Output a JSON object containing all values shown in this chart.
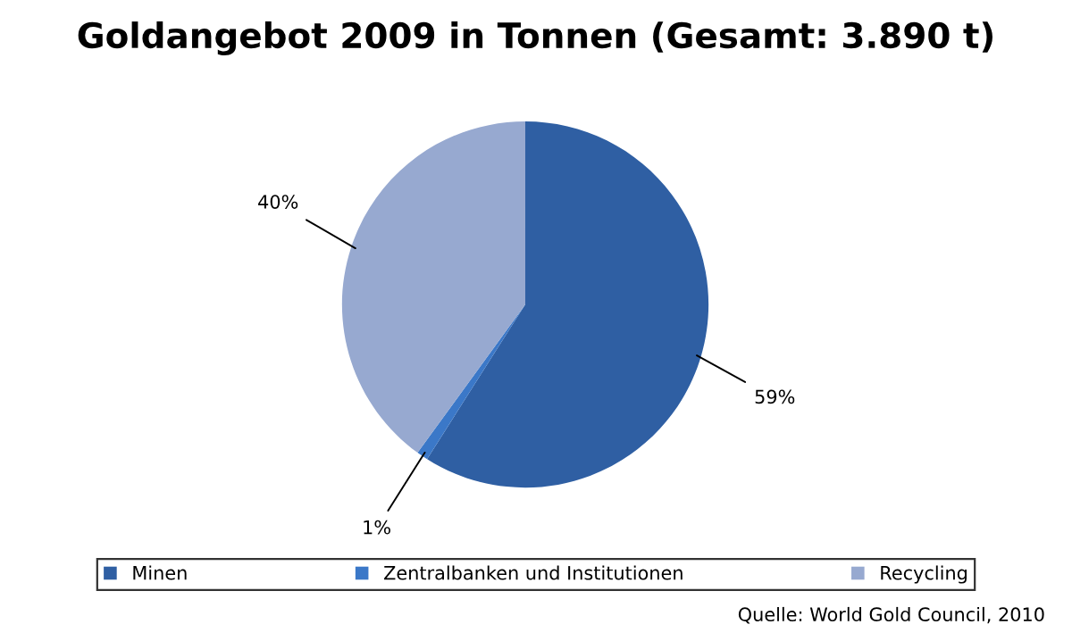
{
  "chart_data": {
    "type": "pie",
    "title": "Goldangebot 2009 in Tonnen (Gesamt: 3.890 t)",
    "categories": [
      "Minen",
      "Zentralbanken und Institutionen",
      "Recycling"
    ],
    "values": [
      59,
      1,
      40
    ],
    "colors": [
      "#2f5fa3",
      "#3b78c8",
      "#97a9d0"
    ],
    "value_labels": [
      "59%",
      "1%",
      "40%"
    ],
    "legend": "bottom",
    "annotations": [
      "Quelle: World Gold Council, 2010"
    ]
  }
}
